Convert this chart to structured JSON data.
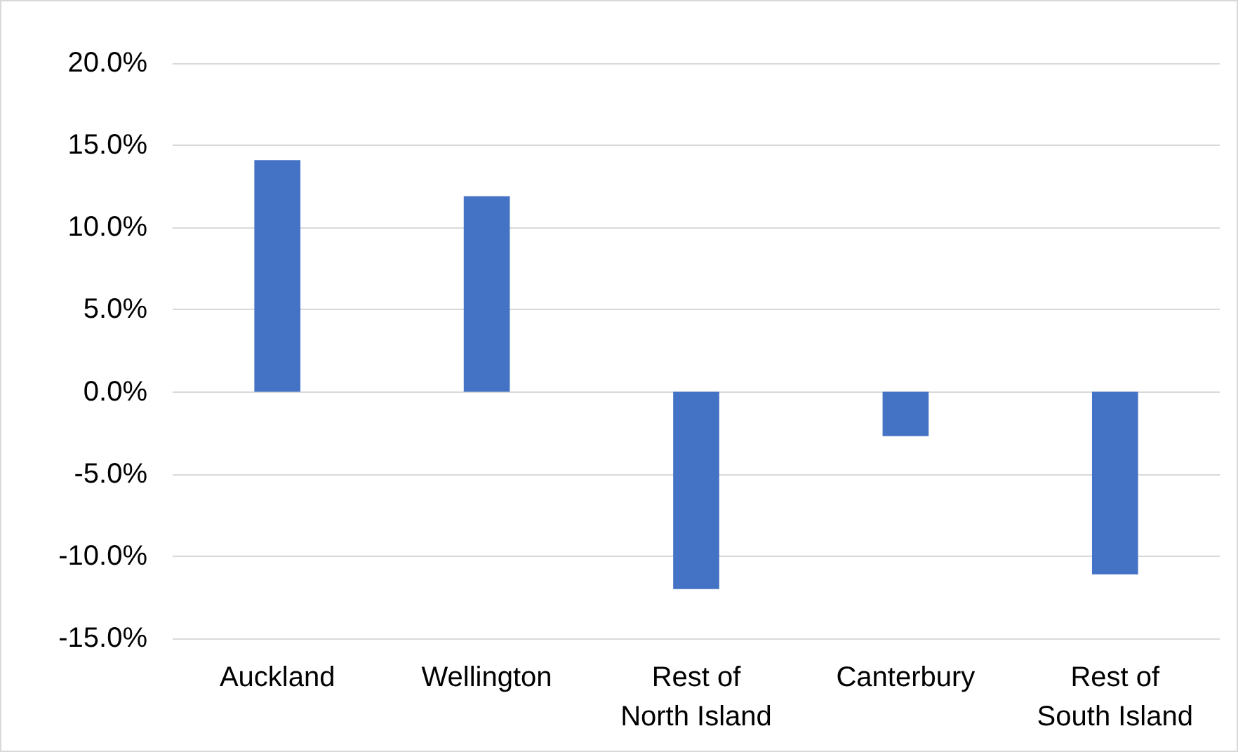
{
  "chart_data": {
    "type": "bar",
    "categories": [
      "Auckland",
      "Wellington",
      "Rest of\nNorth Island",
      "Canterbury",
      "Rest of\nSouth Island"
    ],
    "values": [
      14.1,
      11.9,
      -12.0,
      -2.7,
      -11.1
    ],
    "color": "#4472c4",
    "ylim": [
      -15,
      20
    ],
    "yticks": [
      {
        "value": -15,
        "label": "-15.0%"
      },
      {
        "value": -10,
        "label": "-10.0%"
      },
      {
        "value": -5,
        "label": "-5.0%"
      },
      {
        "value": 0,
        "label": "0.0%"
      },
      {
        "value": 5,
        "label": "5.0%"
      },
      {
        "value": 10,
        "label": "10.0%"
      },
      {
        "value": 15,
        "label": "15.0%"
      },
      {
        "value": 20,
        "label": "20.0%"
      }
    ],
    "grid": "y"
  }
}
